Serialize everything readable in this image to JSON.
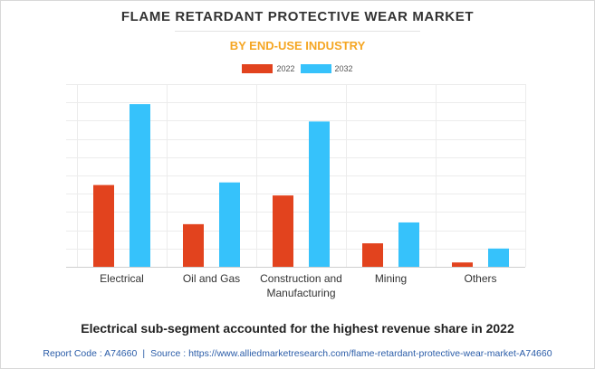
{
  "chart_data": {
    "type": "bar",
    "title": "FLAME RETARDANT PROTECTIVE WEAR MARKET",
    "subtitle": "BY END-USE INDUSTRY",
    "categories": [
      "Electrical",
      "Oil and Gas",
      "Construction and\nManufacturing",
      "Mining",
      "Others"
    ],
    "series": [
      {
        "name": "2022",
        "color": "#e2431e",
        "values": [
          4.7,
          2.45,
          4.1,
          1.35,
          0.25
        ]
      },
      {
        "name": "2032",
        "color": "#36c2fb",
        "values": [
          9.35,
          4.85,
          8.35,
          2.55,
          1.05
        ]
      }
    ],
    "ylim": [
      0,
      10.5
    ],
    "y_gridlines": 10,
    "grid": true,
    "legend_position": "top-center",
    "xlabel": "",
    "ylabel": ""
  },
  "caption": "Electrical sub-segment accounted for the highest revenue share in 2022",
  "footer": {
    "report_code": "Report Code : A74660",
    "separator": "|",
    "source": "Source : https://www.alliedmarketresearch.com/flame-retardant-protective-wear-market-A74660"
  }
}
